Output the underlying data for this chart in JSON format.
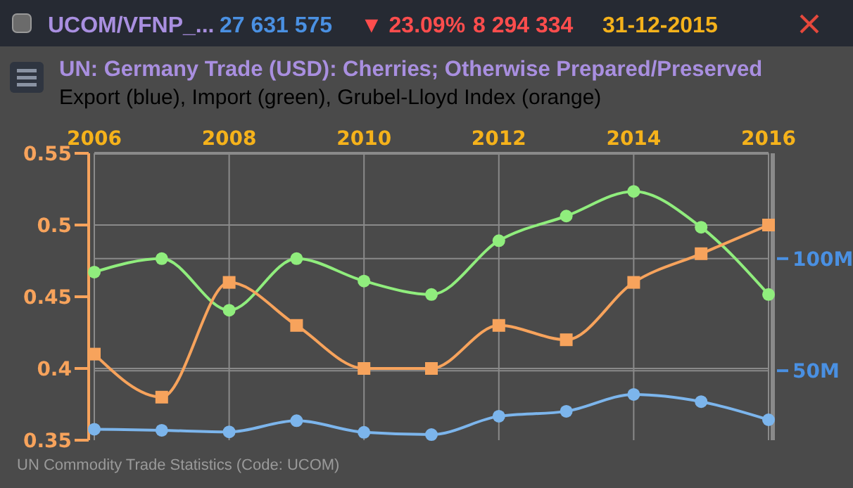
{
  "chart_data": {
    "type": "line",
    "title": "UN: Germany Trade (USD): Cherries; Otherwise Prepared/Preserved",
    "subtitle": "Export (blue), Import (green), Grubel-Lloyd Index (orange)",
    "annotations": [
      "UCOM/VFNP_...",
      "27 631 575",
      "▼ 23.09%",
      "8 294 334",
      "31-12-2015",
      "UN Commodity Trade Statistics (Code: UCOM)"
    ],
    "x": [
      2006,
      2007,
      2008,
      2009,
      2010,
      2011,
      2012,
      2013,
      2014,
      2015,
      2016
    ],
    "xlim": [
      2006,
      2016
    ],
    "xticks": [
      2006,
      2008,
      2010,
      2012,
      2014,
      2016
    ],
    "ylim": [
      0.35,
      0.55
    ],
    "yticks": [
      0.35,
      0.4,
      0.45,
      0.5,
      0.55
    ],
    "y2lim": [
      19,
      147
    ],
    "y2ticks": [
      {
        "value": 50,
        "label": "50M"
      },
      {
        "value": 100,
        "label": "100M"
      }
    ],
    "grid": true,
    "series": [
      {
        "color": "#7cb5ec",
        "axis": "y2",
        "marker": "circle",
        "values": [
          23.9,
          23.4,
          22.7,
          27.7,
          22.5,
          21.5,
          29.7,
          31.9,
          39.4,
          36.2,
          28.1
        ]
      },
      {
        "color": "#90ed7d",
        "axis": "y2",
        "marker": "circle",
        "values": [
          94,
          100,
          77,
          100,
          90,
          84,
          108,
          119,
          130,
          114,
          84
        ]
      },
      {
        "color": "#f7a35c",
        "axis": "y",
        "marker": "square",
        "values": [
          0.41,
          0.38,
          0.46,
          0.43,
          0.4,
          0.4,
          0.43,
          0.42,
          0.46,
          0.48,
          0.5
        ]
      }
    ]
  }
}
